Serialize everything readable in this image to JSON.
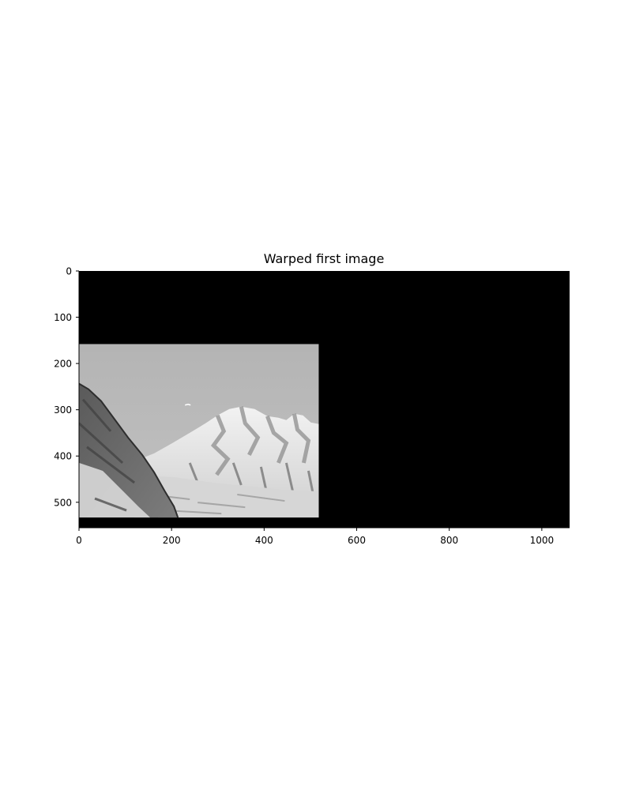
{
  "figure": {
    "title": "Warped first image"
  },
  "chart_data": {
    "type": "image",
    "title": "Warped first image",
    "xlabel": "",
    "ylabel": "",
    "xlim": [
      0,
      1060
    ],
    "ylim": [
      555,
      0
    ],
    "x_ticks": [
      0,
      200,
      400,
      600,
      800,
      1000
    ],
    "y_ticks": [
      0,
      100,
      200,
      300,
      400,
      500
    ],
    "canvas_color": "#000000",
    "colormap": "gray",
    "warped_region": {
      "x_range": [
        0,
        518
      ],
      "y_range": [
        158,
        533
      ],
      "content": "grayscale photo of snow-covered mountain peaks under a clear sky"
    }
  }
}
